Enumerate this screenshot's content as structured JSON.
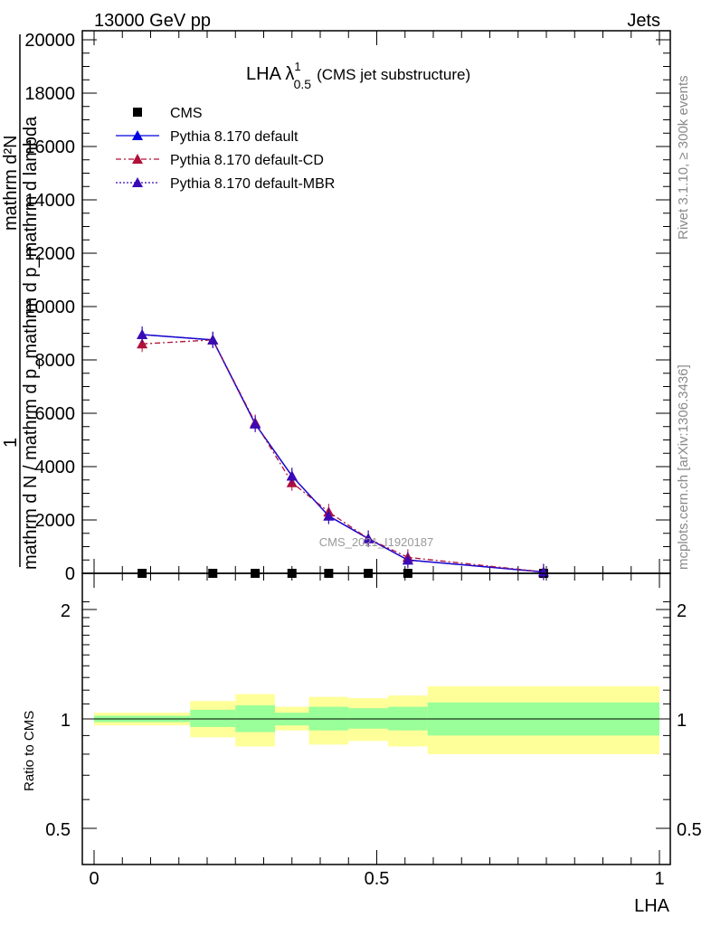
{
  "header": {
    "left": "13000 GeV pp",
    "right": "Jets"
  },
  "side_labels": {
    "rivet": "Rivet 3.1.10, ≥ 300k events",
    "mcplots": "mcplots.cern.ch [arXiv:1306.3436]"
  },
  "chart_data": [
    {
      "type": "line",
      "title_main": "LHA λ",
      "title_sup": "1",
      "title_sub": "0.5",
      "title_rest": "(CMS jet substructure)",
      "ylabel_numerator": "1",
      "ylabel_denominator": "mathrm d N / mathrm d p_mathrm d p_mathrm d lambda",
      "ylabel_top": "mathrm d²N",
      "ylim": [
        0,
        20300
      ],
      "yticks": [
        0,
        2000,
        4000,
        6000,
        8000,
        10000,
        12000,
        14000,
        16000,
        18000,
        20000
      ],
      "xlim": [
        0,
        1
      ],
      "watermark": "CMS_2021_I1920187",
      "legend": [
        {
          "label": "CMS",
          "color": "#000000",
          "marker": "square",
          "line": "none"
        },
        {
          "label": "Pythia 8.170 default",
          "color": "#0000e0",
          "marker": "triangle",
          "line": "solid"
        },
        {
          "label": "Pythia 8.170 default-CD",
          "color": "#b0103a",
          "marker": "triangle",
          "line": "dashdot"
        },
        {
          "label": "Pythia 8.170 default-MBR",
          "color": "#3a0ab5",
          "marker": "triangle",
          "line": "dotted"
        }
      ],
      "series": [
        {
          "name": "CMS",
          "x": [
            0.085,
            0.21,
            0.285,
            0.35,
            0.415,
            0.485,
            0.555,
            0.795
          ],
          "y": [
            0,
            0,
            0,
            0,
            0,
            0,
            0,
            0
          ]
        },
        {
          "name": "Pythia 8.170 default",
          "x": [
            0.085,
            0.21,
            0.285,
            0.35,
            0.415,
            0.485,
            0.555,
            0.795
          ],
          "y": [
            8950,
            8750,
            5600,
            3650,
            2150,
            1300,
            500,
            50
          ]
        },
        {
          "name": "Pythia 8.170 default-CD",
          "x": [
            0.085,
            0.21,
            0.285,
            0.35,
            0.415,
            0.485,
            0.555,
            0.795
          ],
          "y": [
            8600,
            8750,
            5650,
            3400,
            2300,
            1300,
            600,
            50
          ]
        },
        {
          "name": "Pythia 8.170 default-MBR",
          "x": [
            0.085,
            0.21,
            0.285,
            0.35,
            0.415,
            0.485,
            0.555,
            0.795
          ],
          "y": [
            8950,
            8750,
            5600,
            3650,
            2150,
            1300,
            500,
            50
          ]
        }
      ]
    },
    {
      "type": "area",
      "ylabel": "Ratio to CMS",
      "xlabel": "LHA",
      "ylim": [
        0.4,
        2.4
      ],
      "yscale": "log",
      "yticks": [
        0.5,
        1,
        2
      ],
      "xlim": [
        0,
        1
      ],
      "xticks": [
        0,
        0.5,
        1
      ],
      "bands": [
        {
          "x0": 0.0,
          "x1": 0.17,
          "inner_lo": 0.98,
          "inner_hi": 1.02,
          "outer_lo": 0.96,
          "outer_hi": 1.04
        },
        {
          "x0": 0.17,
          "x1": 0.25,
          "inner_lo": 0.95,
          "inner_hi": 1.06,
          "outer_lo": 0.89,
          "outer_hi": 1.12
        },
        {
          "x0": 0.25,
          "x1": 0.32,
          "inner_lo": 0.92,
          "inner_hi": 1.09,
          "outer_lo": 0.84,
          "outer_hi": 1.17
        },
        {
          "x0": 0.32,
          "x1": 0.38,
          "inner_lo": 0.96,
          "inner_hi": 1.04,
          "outer_lo": 0.93,
          "outer_hi": 1.08
        },
        {
          "x0": 0.38,
          "x1": 0.45,
          "inner_lo": 0.93,
          "inner_hi": 1.08,
          "outer_lo": 0.85,
          "outer_hi": 1.15
        },
        {
          "x0": 0.45,
          "x1": 0.52,
          "inner_lo": 0.94,
          "inner_hi": 1.07,
          "outer_lo": 0.87,
          "outer_hi": 1.14
        },
        {
          "x0": 0.52,
          "x1": 0.59,
          "inner_lo": 0.93,
          "inner_hi": 1.08,
          "outer_lo": 0.84,
          "outer_hi": 1.16
        },
        {
          "x0": 0.59,
          "x1": 1.0,
          "inner_lo": 0.9,
          "inner_hi": 1.11,
          "outer_lo": 0.8,
          "outer_hi": 1.23
        }
      ],
      "colors": {
        "outer": "#ffff99",
        "inner": "#99ff99",
        "reference": "#000000"
      }
    }
  ]
}
